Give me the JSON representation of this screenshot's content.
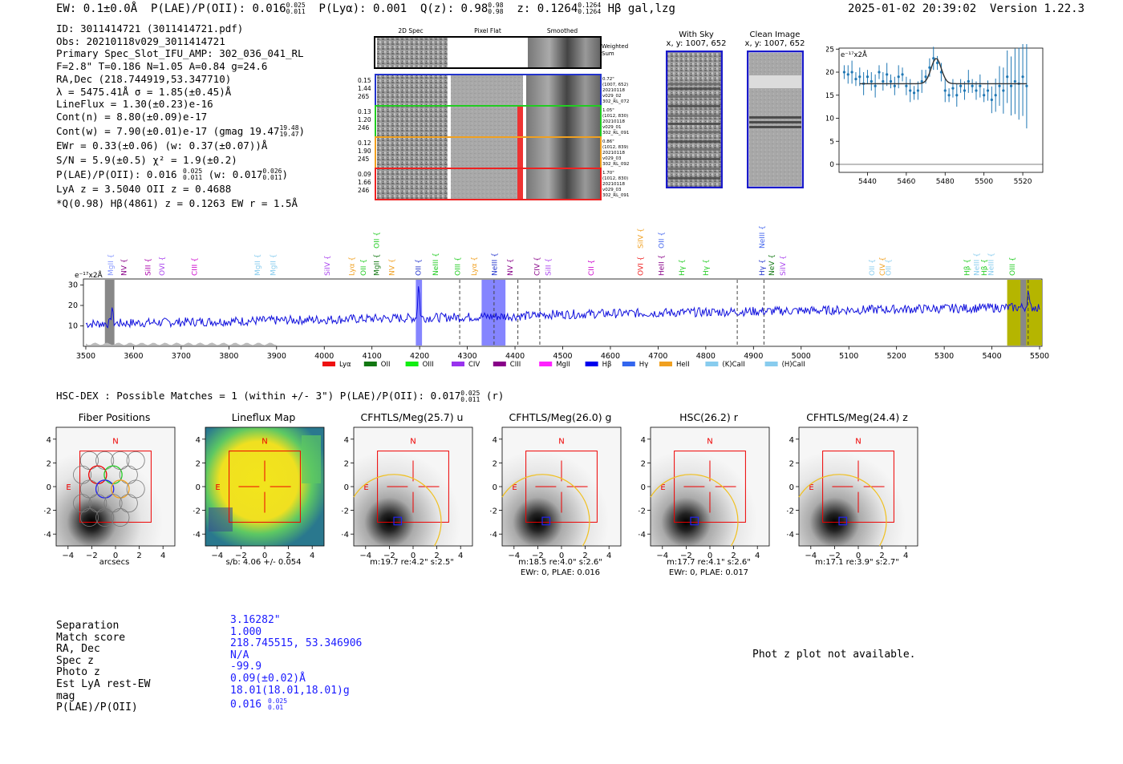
{
  "header": {
    "ew": "EW: 0.1±0.0Å",
    "plae_prefix": "P(LAE)/P(OII): 0.016",
    "plae_hi": "0.025",
    "plae_lo": "0.011",
    "plya": "P(Lyα): 0.001",
    "qz_prefix": "Q(z): 0.98",
    "qz_hi": "0.98",
    "qz_lo": "0.98",
    "z_prefix": "z: 0.1264",
    "z_hi": "0.1264",
    "z_lo": "0.1264",
    "z_suffix": "Hβ  gal,lzg",
    "timestamp": "2025-01-02 20:39:02",
    "version": "Version 1.22.3"
  },
  "info": {
    "id": "ID: 3011414721 (3011414721.pdf)",
    "obs": "Obs: 20210118v029_3011414721",
    "primary": "Primary Spec_Slot_IFU_AMP: 302_036_041_RL",
    "fwhm": "F=2.8\"  T=0.186  N=1.05  A=0.84  g=24.6",
    "radec": "RA,Dec (218.744919,53.347710)",
    "lambda": "λ = 5475.41Å  σ = 1.85(±0.45)Å",
    "lineflux": "LineFlux = 1.30(±0.23)e-16",
    "contn": "Cont(n) = 8.80(±0.09)e-17",
    "contw": "Cont(w) = 7.90(±0.01)e-17 (gmag 19.47",
    "contw_hi": "19.48",
    "contw_lo": "19.47",
    "contw_end": ")",
    "ewr": "EWr = 0.33(±0.06) (w: 0.37(±0.07))Å",
    "sn": "S/N = 5.9(±0.5)  χ² = 1.9(±0.2)",
    "plae": "P(LAE)/P(OII): 0.016",
    "plae_hi": "0.025",
    "plae_lo": "0.011",
    "plae_w": "(w: 0.017",
    "plae_w_hi": "0.026",
    "plae_w_lo": "0.011",
    "plae_w_end": ")",
    "lyaz": "LyA z = 3.5040  OII z = 0.4688",
    "qline": "*Q(0.98) Hβ(4861) z = 0.1263  EW r = 1.5Å"
  },
  "cutouts": {
    "col_2d": "2D Spec",
    "col_flat": "Pixel Flat",
    "col_smooth": "Smoothed",
    "weighted": "Weighted Sum",
    "rows": [
      {
        "left": [
          "0.15",
          "1.44",
          "265"
        ],
        "right": [
          "0.72\"",
          "(1007, 652)",
          "20210118",
          "v029_02",
          "302_RL_072"
        ],
        "color": "#2233cc"
      },
      {
        "left": [
          "0.13",
          "1.20",
          "246"
        ],
        "right": [
          "1.05\"",
          "(1012, 830)",
          "20210118",
          "v029_01",
          "302_RL_091"
        ],
        "color": "#22cc22"
      },
      {
        "left": [
          "0.12",
          "1.90",
          "245"
        ],
        "right": [
          "0.86\"",
          "(1012, 839)",
          "20210118",
          "v029_03",
          "302_RL_092"
        ],
        "color": "#f0a020"
      },
      {
        "left": [
          "0.09",
          "1.66",
          "246"
        ],
        "right": [
          "1.70\"",
          "(1012, 830)",
          "20210118",
          "v029_03",
          "302_RL_091"
        ],
        "color": "#ee2222"
      }
    ]
  },
  "skypanels": {
    "withsky_title": "With Sky",
    "withsky_xy": "x, y: 1007, 652",
    "clean_title": "Clean Image",
    "clean_xy": "x, y: 1007, 652"
  },
  "zoom": {
    "unit": "e⁻¹⁷x2Å",
    "yticks": [
      "25",
      "20",
      "15",
      "10",
      "5",
      "0"
    ],
    "xticks": [
      "5440",
      "5460",
      "5480",
      "5500",
      "5520"
    ]
  },
  "spectrum": {
    "unit": "e⁻¹⁷x2Å",
    "yticks": [
      "30",
      "20",
      "10"
    ],
    "xticks": [
      "3500",
      "3600",
      "3700",
      "3800",
      "3900",
      "4000",
      "4100",
      "4200",
      "4300",
      "4400",
      "4500",
      "4600",
      "4700",
      "4800",
      "4900",
      "5000",
      "5100",
      "5200",
      "5300",
      "5400",
      "5500"
    ],
    "lines": [
      {
        "label": "MgII",
        "color": "#8899ff",
        "x": 3552
      },
      {
        "label": "NV",
        "color": "#880088",
        "x": 3580
      },
      {
        "label": "SiII",
        "color": "#aa00aa",
        "x": 3630
      },
      {
        "label": "OVI",
        "color": "#aa44ee",
        "x": 3660
      },
      {
        "label": "CIII",
        "color": "#cc00cc",
        "x": 3728
      },
      {
        "label": "MgII",
        "color": "#88ccee",
        "x": 3860
      },
      {
        "label": "MgII",
        "color": "#88ccee",
        "x": 3893
      },
      {
        "label": "SiIV",
        "color": "#aa44ee",
        "x": 4006
      },
      {
        "label": "Lyα",
        "color": "#f0a020",
        "x": 4058
      },
      {
        "label": "OII",
        "color": "#22cc22",
        "x": 4082
      },
      {
        "label": "MgII",
        "color": "#117711",
        "x": 4110
      },
      {
        "label": "NV",
        "color": "#f0a020",
        "x": 4142
      },
      {
        "label": "OII",
        "color": "#2233cc",
        "x": 4197
      },
      {
        "label": "NeIII",
        "color": "#22cc22",
        "x": 4233
      },
      {
        "label": "OIII",
        "color": "#22cc22",
        "x": 4280
      },
      {
        "label": "Lyα",
        "color": "#f0a020",
        "x": 4314
      },
      {
        "label": "NeIII",
        "color": "#2233cc",
        "x": 4357
      },
      {
        "label": "NV",
        "color": "#880088",
        "x": 4390
      },
      {
        "label": "CIV",
        "color": "#880088",
        "x": 4446
      },
      {
        "label": "SiII",
        "color": "#aa44ee",
        "x": 4470
      },
      {
        "label": "CII",
        "color": "#cc00cc",
        "x": 4560
      },
      {
        "label": "OVI",
        "color": "#ee2222",
        "x": 4663
      },
      {
        "label": "HeII",
        "color": "#880088",
        "x": 4707
      },
      {
        "label": "Hγ",
        "color": "#22cc22",
        "x": 4750
      },
      {
        "label": "Hγ",
        "color": "#22cc22",
        "x": 4800
      },
      {
        "label": "Hγ",
        "color": "#2233cc",
        "x": 4918
      },
      {
        "label": "NeV",
        "color": "#117711",
        "x": 4938
      },
      {
        "label": "SiIV",
        "color": "#aa44ee",
        "x": 4962
      },
      {
        "label": "OII",
        "color": "#88ccee",
        "x": 5148
      },
      {
        "label": "CIV",
        "color": "#f0a020",
        "x": 5170
      },
      {
        "label": "OII",
        "color": "#88ccee",
        "x": 5183
      },
      {
        "label": "Hβ",
        "color": "#22cc22",
        "x": 5348
      },
      {
        "label": "NeIII",
        "color": "#88ccee",
        "x": 5368
      },
      {
        "label": "Hβ",
        "color": "#22cc22",
        "x": 5384
      },
      {
        "label": "NeIII",
        "color": "#88ccee",
        "x": 5398
      },
      {
        "label": "OIII",
        "color": "#22cc22",
        "x": 5443
      }
    ],
    "upper_lines": [
      {
        "label": "OII",
        "color": "#22cc22",
        "x": 4110
      },
      {
        "label": "SiIV",
        "color": "#f0a020",
        "x": 4663
      },
      {
        "label": "OII",
        "color": "#4466ee",
        "x": 4707
      },
      {
        "label": "NeIII",
        "color": "#4466ee",
        "x": 4918
      }
    ],
    "legend": [
      {
        "label": "Lyα",
        "color": "#ee1111"
      },
      {
        "label": "OII",
        "color": "#117711"
      },
      {
        "label": "OIII",
        "color": "#11ee11"
      },
      {
        "label": "CIV",
        "color": "#9933ee"
      },
      {
        "label": "CIII",
        "color": "#880088"
      },
      {
        "label": "MgII",
        "color": "#ff22ff"
      },
      {
        "label": "Hβ",
        "color": "#0000ee"
      },
      {
        "label": "Hγ",
        "color": "#3366ee"
      },
      {
        "label": "HeII",
        "color": "#f0a020"
      },
      {
        "label": "(K)CaII",
        "color": "#88ccee"
      },
      {
        "label": "(H)CaII",
        "color": "#88ccee"
      }
    ]
  },
  "matches": {
    "line": "HSC-DEX : Possible Matches = 1 (within +/- 3\")  P(LAE)/P(OII): 0.017",
    "hi": "0.025",
    "lo": "0.011",
    "suffix": "(r)"
  },
  "panels": [
    {
      "title": "Fiber Positions",
      "cap1": "arcsecs",
      "cap2": ""
    },
    {
      "title": "Lineflux Map",
      "cap1": "s/b: 4.06 +/- 0.054",
      "cap2": ""
    },
    {
      "title": "CFHTLS/Meg(25.7) u",
      "cap1": "m:19.7  re:4.2\"  s:2.5\"",
      "cap2": ""
    },
    {
      "title": "CFHTLS/Meg(26.0) g",
      "cap1": "m:18.5  re:4.0\"  s:2.6\"",
      "cap2": "EWr: 0, PLAE: 0.016"
    },
    {
      "title": "HSC(26.2) r",
      "cap1": "m:17.7  re:4.1\"  s:2.6\"",
      "cap2": "EWr: 0, PLAE: 0.017"
    },
    {
      "title": "CFHTLS/Meg(24.4) z",
      "cap1": "m:17.1  re:3.9\"  s:2.7\"",
      "cap2": ""
    }
  ],
  "panel_ticks": {
    "y": [
      "4",
      "2",
      "0",
      "−2",
      "−4"
    ],
    "x": [
      "−4",
      "−2",
      "0",
      "2",
      "4"
    ],
    "n": "N",
    "e": "E"
  },
  "table": {
    "labels": [
      "Separation",
      "Match score",
      "RA, Dec",
      "Spec z",
      "Photo z",
      "Est LyA rest-EW",
      "mag",
      "P(LAE)/P(OII)"
    ],
    "values": [
      "3.16282\"",
      "1.000",
      "218.745515, 53.346906",
      "N/A",
      "-99.9",
      "0.09(±0.02)Å",
      "18.01(18.01,18.01)g",
      "0.016"
    ],
    "plae_hi": "0.025",
    "plae_lo": "0.01"
  },
  "photz": "Phot z plot not available."
}
